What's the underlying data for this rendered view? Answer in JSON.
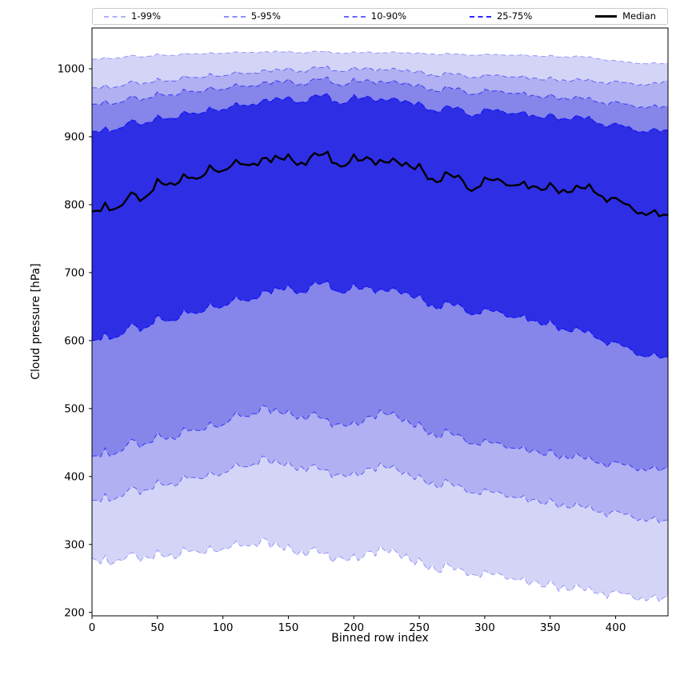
{
  "figure": {
    "background": "#ffffff"
  },
  "legend": {
    "items": [
      {
        "label": "1-99%",
        "color": "rgba(0,0,255,0.3)",
        "style": "dashed",
        "width": 2
      },
      {
        "label": "5-95%",
        "color": "rgba(0,0,255,0.45)",
        "style": "dashed",
        "width": 2
      },
      {
        "label": "10-90%",
        "color": "rgba(0,0,255,0.6)",
        "style": "dashed",
        "width": 2
      },
      {
        "label": "25-75%",
        "color": "rgba(0,0,255,0.85)",
        "style": "dashed",
        "width": 2
      },
      {
        "label": "Median",
        "color": "#000000",
        "style": "solid",
        "width": 3
      }
    ]
  },
  "chart_data": {
    "type": "area",
    "title": "",
    "xlabel": "Binned row index",
    "ylabel": "Cloud pressure [hPa]",
    "x_start": 0,
    "x_step": 10,
    "xlim": [
      0,
      440
    ],
    "ylim": [
      195,
      1060
    ],
    "y_axis_inverted": true,
    "grid": false,
    "legend_position": "top-expanded",
    "x_ticks": [
      0,
      50,
      100,
      150,
      200,
      250,
      300,
      350,
      400
    ],
    "y_ticks": [
      200,
      300,
      400,
      500,
      600,
      700,
      800,
      900,
      1000
    ],
    "bands": [
      {
        "label": "1-99%",
        "lower": "p1",
        "upper": "p99",
        "fill": "#d4d4f7",
        "line": "rgba(0,0,255,0.35)"
      },
      {
        "label": "5-95%",
        "lower": "p5",
        "upper": "p95",
        "fill": "#b0b0f2",
        "line": "rgba(0,0,255,0.5)"
      },
      {
        "label": "10-90%",
        "lower": "p10",
        "upper": "p90",
        "fill": "#8585ea",
        "line": "rgba(0,0,255,0.65)"
      },
      {
        "label": "25-75%",
        "lower": "p25",
        "upper": "p75",
        "fill": "#2e2ee4",
        "line": "rgba(0,0,255,0.9)"
      }
    ],
    "median_style": {
      "label": "Median",
      "color": "#000000",
      "width": 2.4
    },
    "series": {
      "p1": [
        280,
        284,
        278,
        288,
        283,
        292,
        286,
        296,
        290,
        298,
        294,
        305,
        298,
        310,
        304,
        300,
        292,
        296,
        288,
        282,
        286,
        290,
        298,
        294,
        286,
        280,
        270,
        274,
        266,
        256,
        262,
        258,
        250,
        252,
        246,
        248,
        240,
        243,
        238,
        230,
        232,
        228,
        222,
        226,
        224
      ],
      "p5": [
        365,
        375,
        370,
        385,
        380,
        395,
        390,
        402,
        398,
        408,
        405,
        420,
        414,
        430,
        425,
        422,
        415,
        418,
        410,
        404,
        408,
        412,
        420,
        416,
        408,
        403,
        392,
        396,
        388,
        376,
        382,
        378,
        370,
        372,
        366,
        368,
        360,
        362,
        358,
        348,
        350,
        345,
        338,
        341,
        336
      ],
      "p10": [
        430,
        442,
        436,
        455,
        448,
        465,
        458,
        472,
        468,
        480,
        476,
        495,
        488,
        505,
        500,
        498,
        490,
        495,
        485,
        478,
        482,
        488,
        498,
        495,
        485,
        480,
        465,
        470,
        462,
        448,
        455,
        450,
        442,
        445,
        438,
        440,
        432,
        435,
        430,
        420,
        422,
        418,
        412,
        416,
        413
      ],
      "p25": [
        600,
        612,
        606,
        625,
        618,
        638,
        630,
        645,
        640,
        655,
        650,
        665,
        658,
        672,
        678,
        682,
        672,
        686,
        688,
        670,
        684,
        680,
        676,
        678,
        672,
        668,
        652,
        658,
        654,
        638,
        648,
        644,
        634,
        638,
        628,
        630,
        618,
        620,
        615,
        600,
        598,
        590,
        578,
        582,
        575
      ],
      "median": [
        790,
        803,
        796,
        818,
        810,
        838,
        832,
        845,
        838,
        858,
        850,
        866,
        858,
        868,
        872,
        874,
        862,
        876,
        878,
        856,
        874,
        870,
        866,
        868,
        862,
        860,
        838,
        848,
        843,
        820,
        840,
        838,
        828,
        834,
        826,
        832,
        822,
        828,
        830,
        812,
        810,
        800,
        788,
        792,
        785
      ],
      "p75": [
        908,
        915,
        912,
        925,
        920,
        932,
        928,
        938,
        934,
        944,
        940,
        950,
        946,
        954,
        958,
        960,
        952,
        962,
        964,
        948,
        962,
        960,
        956,
        958,
        954,
        952,
        940,
        946,
        944,
        930,
        942,
        940,
        934,
        938,
        930,
        935,
        928,
        932,
        930,
        918,
        920,
        915,
        908,
        913,
        910
      ],
      "p90": [
        948,
        954,
        950,
        960,
        956,
        966,
        962,
        970,
        966,
        974,
        970,
        978,
        974,
        980,
        983,
        985,
        978,
        986,
        988,
        975,
        986,
        984,
        982,
        983,
        980,
        978,
        970,
        974,
        972,
        962,
        970,
        968,
        964,
        966,
        960,
        963,
        958,
        960,
        958,
        950,
        952,
        948,
        944,
        947,
        945
      ],
      "p95": [
        972,
        977,
        974,
        982,
        979,
        986,
        983,
        990,
        987,
        993,
        990,
        996,
        993,
        998,
        1000,
        1002,
        997,
        1003,
        1004,
        996,
        1003,
        1002,
        1000,
        1001,
        999,
        998,
        992,
        995,
        993,
        987,
        992,
        991,
        988,
        990,
        986,
        988,
        984,
        986,
        985,
        980,
        982,
        980,
        977,
        980,
        983
      ],
      "p99": [
        1014,
        1017,
        1016,
        1020,
        1018,
        1022,
        1020,
        1023,
        1022,
        1024,
        1023,
        1025,
        1024,
        1025,
        1026,
        1026,
        1024,
        1026,
        1026,
        1023,
        1025,
        1025,
        1024,
        1025,
        1024,
        1024,
        1022,
        1023,
        1022,
        1020,
        1022,
        1021,
        1020,
        1021,
        1019,
        1020,
        1018,
        1019,
        1018,
        1014,
        1012,
        1010,
        1008,
        1009,
        1008
      ]
    }
  }
}
